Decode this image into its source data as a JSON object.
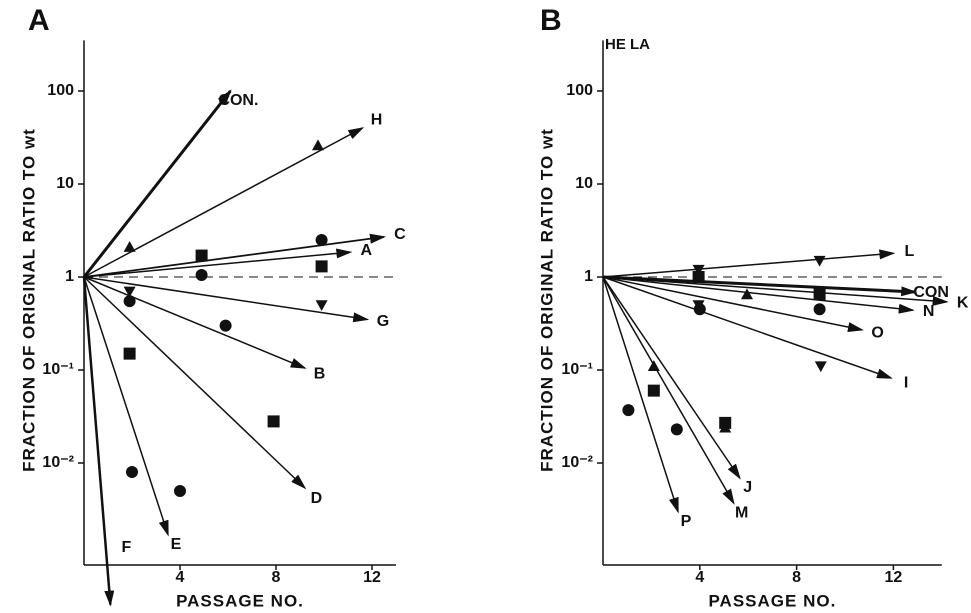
{
  "chart_data": [
    {
      "type": "scatter",
      "label": "A",
      "ylabel": "FRACTION OF ORIGINAL RATIO TO wt",
      "xlabel": "PASSAGE NO.",
      "xlim": [
        0,
        13
      ],
      "ylim": [
        0.0008,
        350
      ],
      "log_y": true,
      "color": "#111111",
      "hline": 1,
      "xticks": [
        4,
        8,
        12
      ],
      "yticks": [
        {
          "value": 0.01,
          "label": "10⁻²"
        },
        {
          "value": 0.1,
          "label": "10⁻¹"
        },
        1,
        10,
        100
      ],
      "arrows": [
        {
          "name": "CON.",
          "x": [
            0,
            6.1
          ],
          "values": [
            1,
            100
          ],
          "width": 3
        },
        {
          "name": "H",
          "x": [
            0,
            11.6
          ],
          "values": [
            1,
            40
          ],
          "width": 1.5
        },
        {
          "name": "C",
          "x": [
            0,
            12.5
          ],
          "values": [
            1,
            2.7
          ],
          "width": 1.8
        },
        {
          "name": "A",
          "x": [
            0,
            11.1
          ],
          "values": [
            1,
            1.85
          ],
          "width": 1.5
        },
        {
          "name": "G",
          "x": [
            0,
            11.8
          ],
          "values": [
            1,
            0.35
          ],
          "width": 1.5
        },
        {
          "name": "B",
          "x": [
            0,
            9.2
          ],
          "values": [
            1,
            0.105
          ],
          "width": 1.5
        },
        {
          "name": "D",
          "x": [
            0,
            9.2
          ],
          "values": [
            1,
            0.0054
          ],
          "width": 1.5
        },
        {
          "name": "E",
          "x": [
            0,
            3.5
          ],
          "values": [
            1,
            0.0017
          ],
          "width": 1.5
        },
        {
          "name": "F",
          "x": [
            0,
            1.1
          ],
          "values": [
            1,
            0.0003
          ],
          "width": 2.5
        }
      ],
      "series": [
        {
          "marker": "triangle",
          "x": [
            1.9,
            9.75
          ],
          "values": [
            2.1,
            26
          ]
        },
        {
          "marker": "square",
          "x": [
            4.9,
            9.9,
            1.9,
            7.9
          ],
          "values": [
            1.7,
            1.3,
            0.15,
            0.028
          ]
        },
        {
          "marker": "circle",
          "x": [
            9.9,
            4.9,
            1.9,
            5.9,
            2,
            4
          ],
          "values": [
            2.5,
            1.05,
            0.55,
            0.3,
            0.008,
            0.005
          ]
        },
        {
          "marker": "triangle-down",
          "x": [
            1.9,
            9.9
          ],
          "values": [
            0.7,
            0.5
          ]
        }
      ]
    },
    {
      "type": "scatter",
      "label": "B",
      "annotation": "HE LA",
      "ylabel": "FRACTION OF ORIGINAL RATIO TO wt",
      "xlabel": "PASSAGE NO.",
      "xlim": [
        0,
        14
      ],
      "ylim": [
        0.0008,
        350
      ],
      "log_y": true,
      "color": "#111111",
      "hline": 1,
      "xticks": [
        4,
        8,
        12
      ],
      "yticks": [
        {
          "value": 0.01,
          "label": "10⁻²"
        },
        {
          "value": 0.1,
          "label": "10⁻¹"
        },
        1,
        10,
        100
      ],
      "arrows": [
        {
          "name": "L",
          "x": [
            0,
            12
          ],
          "values": [
            1,
            1.8
          ],
          "width": 1.5
        },
        {
          "name": "CON",
          "x": [
            0,
            12.9
          ],
          "values": [
            1,
            0.69
          ],
          "width": 3
        },
        {
          "name": "K",
          "x": [
            0,
            14.2
          ],
          "values": [
            1,
            0.54
          ],
          "width": 1.5
        },
        {
          "name": "N",
          "x": [
            0,
            12.8
          ],
          "values": [
            1,
            0.44
          ],
          "width": 1.5
        },
        {
          "name": "O",
          "x": [
            0,
            10.7
          ],
          "values": [
            1,
            0.27
          ],
          "width": 1.5
        },
        {
          "name": "I",
          "x": [
            0,
            11.9
          ],
          "values": [
            1,
            0.082
          ],
          "width": 1.5
        },
        {
          "name": "J",
          "x": [
            0,
            5.65
          ],
          "values": [
            1,
            0.0069
          ],
          "width": 1.5
        },
        {
          "name": "M",
          "x": [
            0,
            5.4
          ],
          "values": [
            1,
            0.0037
          ],
          "width": 1.5
        },
        {
          "name": "P",
          "x": [
            0,
            3.1
          ],
          "values": [
            1,
            0.003
          ],
          "width": 1.5
        }
      ],
      "series": [
        {
          "marker": "triangle-down",
          "x": [
            3.95,
            8.95,
            9,
            3.95
          ],
          "values": [
            1.2,
            1.5,
            0.11,
            0.5
          ]
        },
        {
          "marker": "square",
          "x": [
            3.95,
            8.95,
            2.1,
            5.05
          ],
          "values": [
            1.0,
            0.65,
            0.06,
            0.027
          ]
        },
        {
          "marker": "triangle",
          "x": [
            5.95,
            2.1,
            5.05
          ],
          "values": [
            0.65,
            0.11,
            0.024
          ]
        },
        {
          "marker": "circle",
          "x": [
            4,
            8.95,
            1.05,
            3.05
          ],
          "values": [
            0.45,
            0.45,
            0.037,
            0.023
          ]
        }
      ]
    }
  ]
}
